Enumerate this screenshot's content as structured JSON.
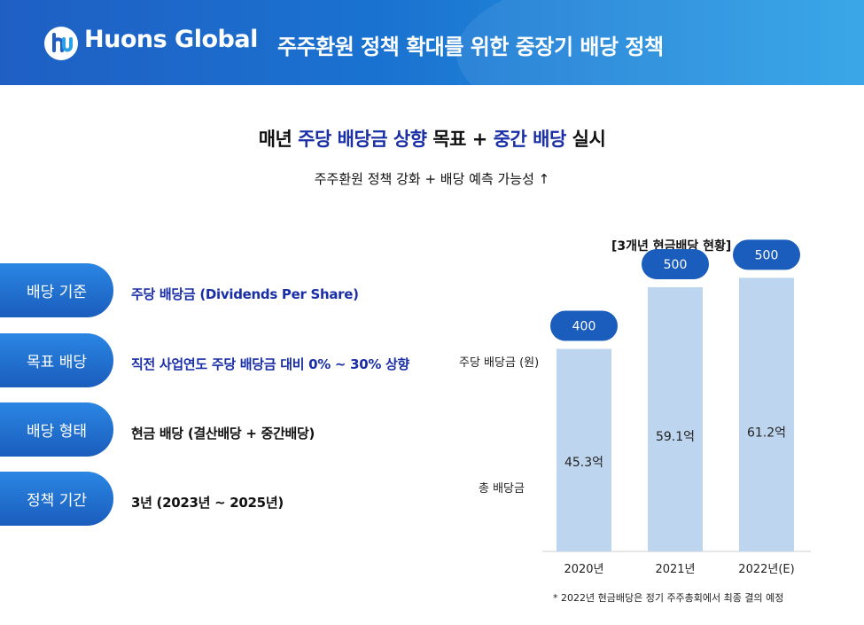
{
  "header": {
    "brand": "Huons Global",
    "title": "주주환원 정책 확대를 위한 중장기 배당 정책",
    "brand_color": "#1f5fc4"
  },
  "headline": {
    "part1": "매년 ",
    "part2": "주당 배당금 상향",
    "part3": " 목표 + ",
    "part4": "중간 배당",
    "part5": " 실시",
    "highlight_color": "#1a2fa6"
  },
  "subline": "주주환원 정책 강화 + 배당 예측 가능성 ↑",
  "policy": [
    {
      "label": "배당 기준",
      "value": "주당 배당금 (Dividends Per Share)"
    },
    {
      "label": "목표 배당",
      "value": "직전 사업연도 주당 배당금 대비 0% ~ 30% 상향"
    },
    {
      "label": "배당 형태",
      "value": "현금 배당 (결산배당 + 중간배당)"
    },
    {
      "label": "정책 기간",
      "value": "3년 (2023년 ~ 2025년)"
    }
  ],
  "chart_data": {
    "type": "bar",
    "title": "[3개년 현금배당 현황]",
    "categories": [
      "2020년",
      "2021년",
      "2022년(E)"
    ],
    "series": [
      {
        "name": "총 배당금",
        "values": [
          45.3,
          59.1,
          61.2
        ],
        "labels": [
          "45.3억",
          "59.1억",
          "61.2억"
        ]
      },
      {
        "name": "주당 배당금 (원)",
        "values": [
          400,
          500,
          500
        ],
        "labels": [
          "400",
          "500",
          "500"
        ]
      }
    ],
    "ylim": [
      0,
      70
    ],
    "bar_color": "#bdd5ee",
    "badge_color": "#1a5dbd",
    "grid": false
  },
  "footnote": "* 2022년 현금배당은 정기 주주총회에서 최종 결의 예정"
}
